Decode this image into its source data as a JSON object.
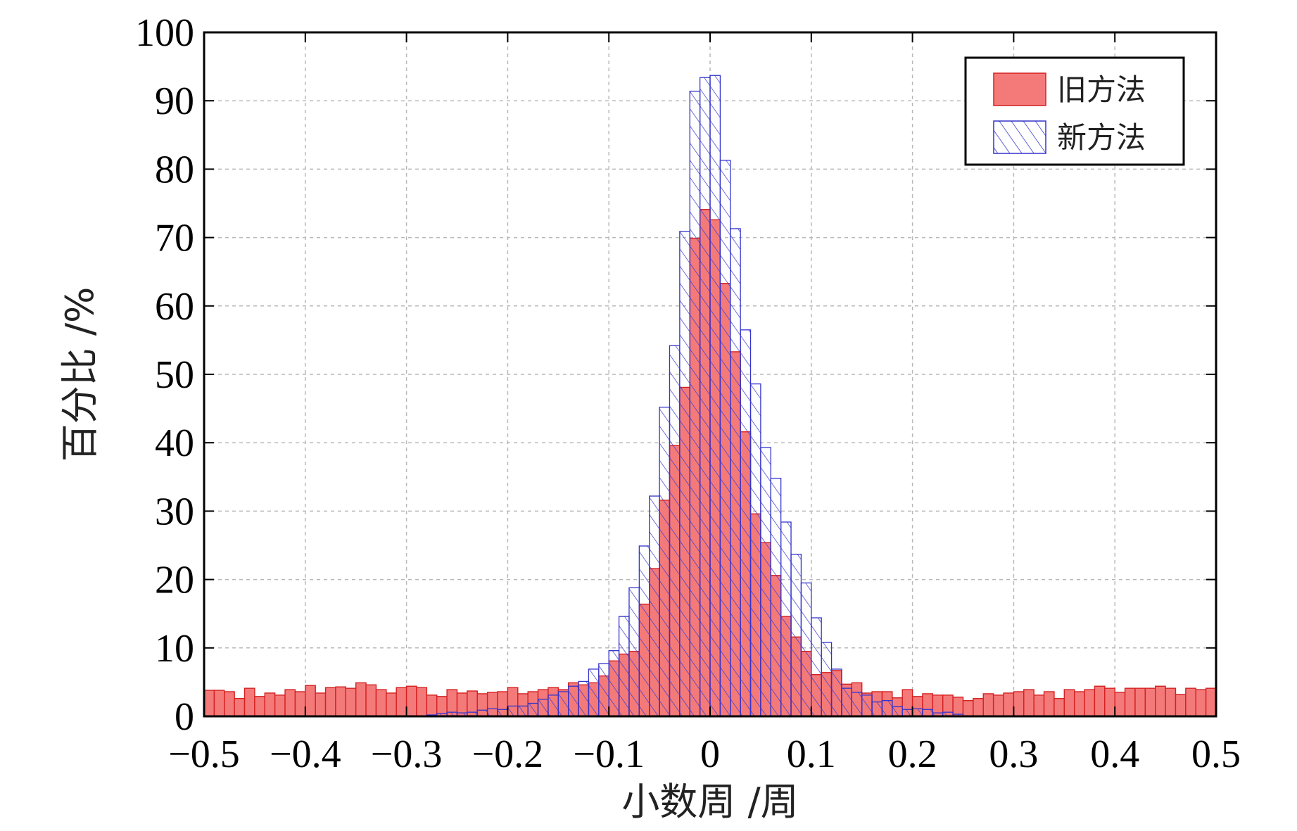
{
  "chart_data": {
    "type": "bar",
    "title": "",
    "xlabel": "小数周 /周",
    "ylabel": "百分比 /%",
    "xlim": [
      -0.5,
      0.5
    ],
    "ylim": [
      0,
      100
    ],
    "grid": true,
    "legend_position": "top-right",
    "bin_width": 0.01,
    "bin_centers": [
      -0.495,
      -0.485,
      -0.475,
      -0.465,
      -0.455,
      -0.445,
      -0.435,
      -0.425,
      -0.415,
      -0.405,
      -0.395,
      -0.385,
      -0.375,
      -0.365,
      -0.355,
      -0.345,
      -0.335,
      -0.325,
      -0.315,
      -0.305,
      -0.295,
      -0.285,
      -0.275,
      -0.265,
      -0.255,
      -0.245,
      -0.235,
      -0.225,
      -0.215,
      -0.205,
      -0.195,
      -0.185,
      -0.175,
      -0.165,
      -0.155,
      -0.145,
      -0.135,
      -0.125,
      -0.115,
      -0.105,
      -0.095,
      -0.085,
      -0.075,
      -0.065,
      -0.055,
      -0.045,
      -0.035,
      -0.025,
      -0.015,
      -0.005,
      0.005,
      0.015,
      0.025,
      0.035,
      0.045,
      0.055,
      0.065,
      0.075,
      0.085,
      0.095,
      0.105,
      0.115,
      0.125,
      0.135,
      0.145,
      0.155,
      0.165,
      0.175,
      0.185,
      0.195,
      0.205,
      0.215,
      0.225,
      0.235,
      0.245,
      0.255,
      0.265,
      0.275,
      0.285,
      0.295,
      0.305,
      0.315,
      0.325,
      0.335,
      0.345,
      0.355,
      0.365,
      0.375,
      0.385,
      0.395,
      0.405,
      0.415,
      0.425,
      0.435,
      0.445,
      0.455,
      0.465,
      0.475,
      0.485,
      0.495
    ],
    "series": [
      {
        "name": "旧方法",
        "color": "#f47a7a",
        "edge_color": "#d42020",
        "style": "solid",
        "values": [
          3.8,
          3.8,
          3.6,
          2.6,
          4.1,
          2.9,
          3.4,
          3.1,
          3.9,
          3.6,
          4.5,
          3.4,
          4.2,
          4.3,
          4.1,
          4.9,
          4.6,
          3.9,
          3.4,
          4.2,
          4.4,
          4.2,
          3.1,
          2.9,
          3.9,
          3.4,
          3.7,
          3.3,
          3.5,
          3.6,
          4.2,
          3.3,
          3.6,
          3.9,
          4.2,
          3.9,
          4.9,
          4.6,
          4.9,
          5.9,
          8.1,
          9.1,
          9.5,
          16.4,
          21.6,
          31.6,
          39.6,
          48.1,
          69.9,
          74.1,
          72.6,
          63.3,
          53.3,
          41.6,
          29.6,
          25.4,
          20.6,
          14.6,
          11.6,
          9.5,
          6.1,
          6.4,
          6.7,
          4.7,
          4.9,
          3.4,
          3.6,
          3.6,
          2.7,
          3.9,
          2.9,
          3.3,
          3.1,
          3.1,
          2.8,
          2.3,
          2.6,
          3.3,
          3.1,
          3.4,
          3.6,
          3.9,
          3.1,
          3.6,
          2.6,
          3.9,
          3.6,
          3.9,
          4.4,
          4.1,
          3.5,
          4.1,
          4.1,
          4.1,
          4.4,
          4.1,
          3.2,
          4.1,
          3.9,
          4.1
        ]
      },
      {
        "name": "新方法",
        "color": "#3333cc",
        "edge_color": "#3333cc",
        "style": "hatched",
        "values": [
          0,
          0,
          0,
          0,
          0,
          0,
          0,
          0,
          0,
          0,
          0,
          0,
          0,
          0,
          0,
          0,
          0,
          0,
          0,
          0,
          0,
          0,
          0.2,
          0.4,
          0.6,
          0.5,
          0.6,
          0.9,
          1.1,
          1.0,
          1.5,
          1.5,
          1.9,
          2.5,
          3.1,
          3.6,
          4.4,
          5.1,
          6.9,
          7.7,
          9.6,
          14.6,
          18.8,
          24.9,
          32.2,
          45.2,
          54.2,
          70.9,
          91.4,
          93.4,
          93.7,
          81.3,
          71.3,
          56.5,
          48.6,
          39.3,
          34.8,
          28.4,
          23.7,
          19.5,
          14.4,
          10.8,
          6.9,
          4.1,
          3.5,
          3.1,
          2.1,
          2.3,
          1.4,
          1.0,
          1.1,
          1.0,
          0.5,
          0.6,
          0.3,
          0,
          0,
          0,
          0,
          0,
          0,
          0,
          0,
          0,
          0,
          0,
          0,
          0,
          0,
          0,
          0,
          0,
          0,
          0,
          0,
          0,
          0,
          0,
          0,
          0
        ]
      }
    ],
    "x_ticks": [
      "−0.5",
      "−0.4",
      "−0.3",
      "−0.2",
      "−0.1",
      "0",
      "0.1",
      "0.2",
      "0.3",
      "0.4",
      "0.5"
    ],
    "y_ticks": [
      "0",
      "10",
      "20",
      "30",
      "40",
      "50",
      "60",
      "70",
      "80",
      "90",
      "100"
    ]
  }
}
